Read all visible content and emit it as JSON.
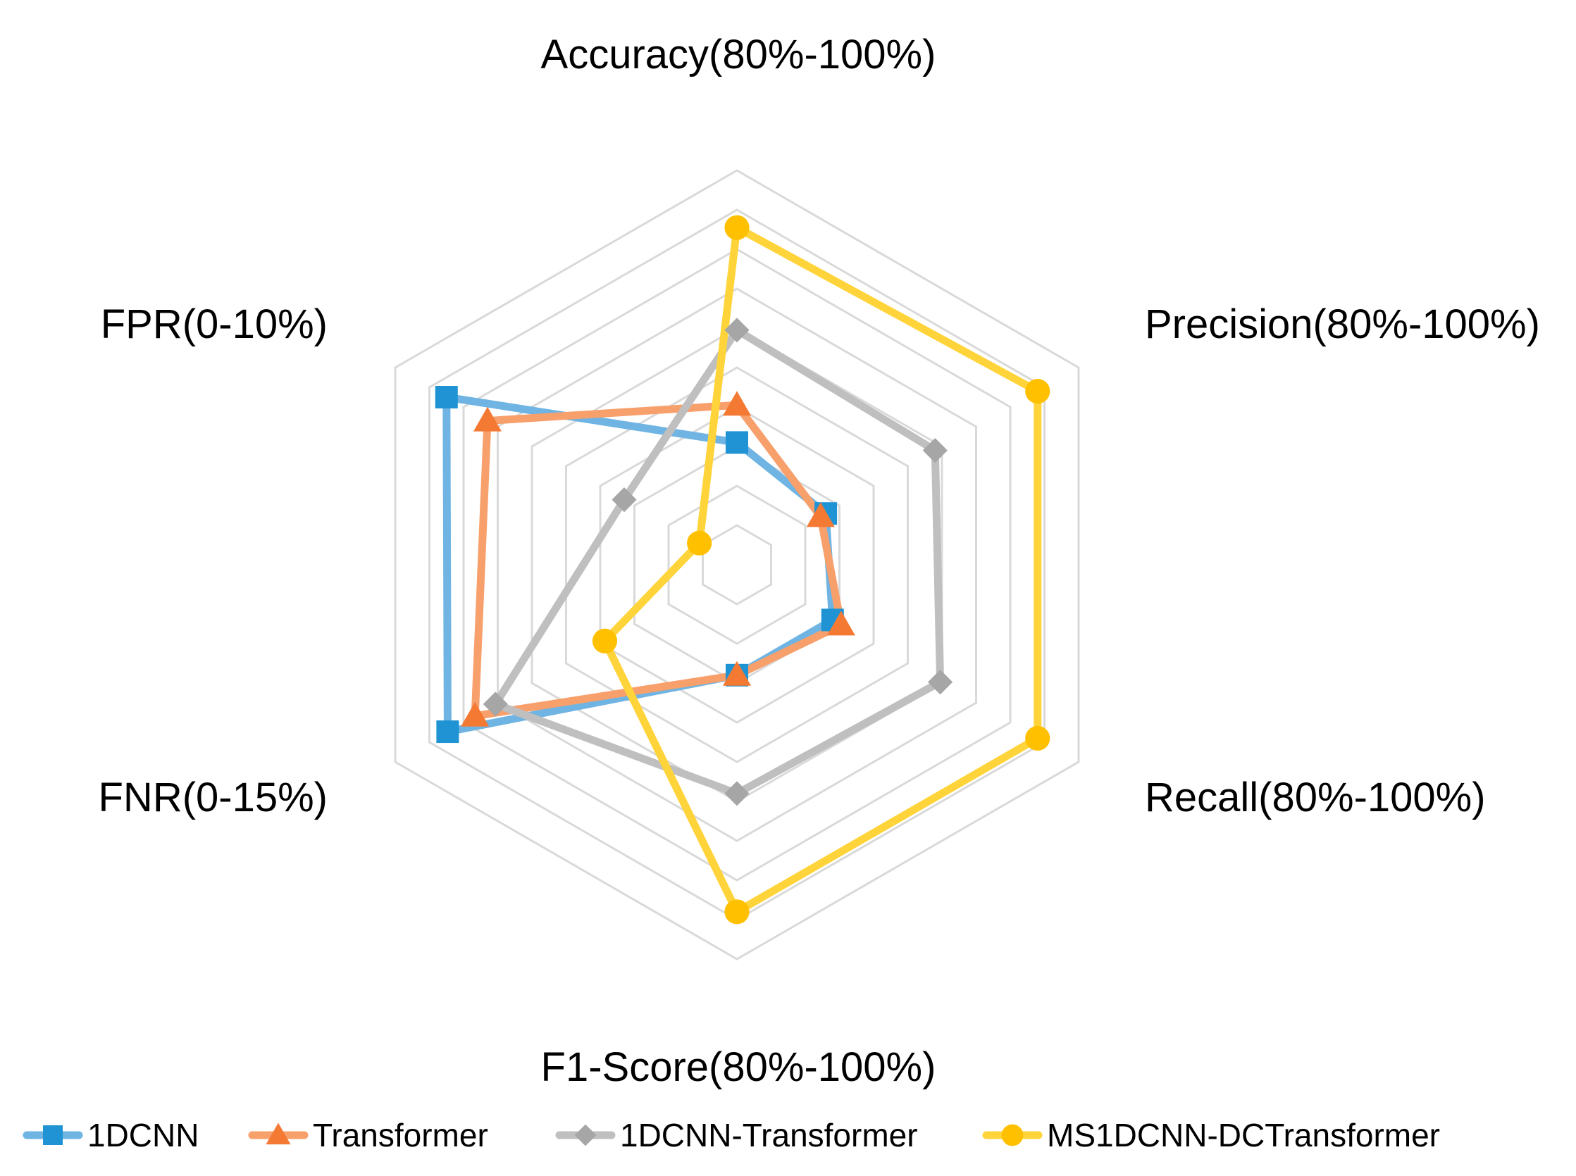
{
  "chart_data": {
    "type": "radar",
    "title": "",
    "axes": [
      {
        "label": "Accuracy(80%-100%)",
        "min": 80,
        "max": 100,
        "unit": "%"
      },
      {
        "label": "Precision(80%-100%)",
        "min": 80,
        "max": 100,
        "unit": "%"
      },
      {
        "label": "Recall(80%-100%)",
        "min": 80,
        "max": 100,
        "unit": "%"
      },
      {
        "label": "F1-Score(80%-100%)",
        "min": 80,
        "max": 100,
        "unit": "%"
      },
      {
        "label": "FNR(0-15%)",
        "min": 0,
        "max": 15,
        "unit": "%"
      },
      {
        "label": "FPR(0-10%)",
        "min": 0,
        "max": 10,
        "unit": "%"
      }
    ],
    "grid_levels": 10,
    "legend_position": "bottom",
    "series": [
      {
        "name": "1DCNN",
        "color": "#1f93d3",
        "line_color": "#6fb4e3",
        "marker": "square",
        "values": [
          86.2,
          85.2,
          85.6,
          85.6,
          12.7,
          8.5
        ]
      },
      {
        "name": "Transformer",
        "color": "#f47a34",
        "line_color": "#f7a06c",
        "marker": "triangle",
        "values": [
          88.1,
          84.9,
          86.1,
          85.6,
          11.5,
          7.3
        ]
      },
      {
        "name": "1DCNN-Transformer",
        "color": "#a6a6a6",
        "line_color": "#bfbfbf",
        "marker": "diamond",
        "values": [
          91.9,
          91.6,
          91.9,
          91.6,
          10.6,
          3.3
        ]
      },
      {
        "name": "MS1DCNN-DCTransformer",
        "color": "#ffc000",
        "line_color": "#ffd43a",
        "marker": "circle",
        "values": [
          97.1,
          97.6,
          97.6,
          97.6,
          5.8,
          1.1
        ]
      }
    ]
  }
}
